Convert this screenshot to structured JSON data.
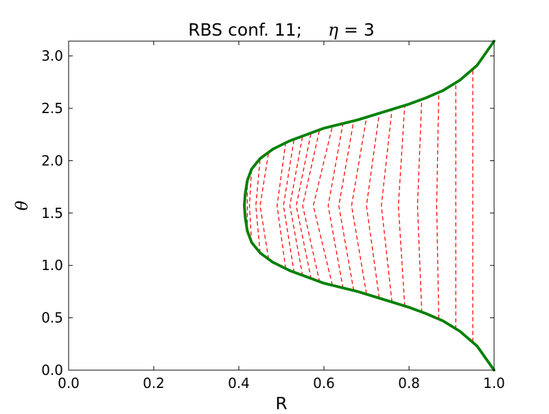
{
  "chart_data": {
    "type": "line",
    "title": {
      "prefix": "RBS conf. 11;",
      "param_symbol": "η",
      "param_suffix": " = 3"
    },
    "xlabel": "R",
    "ylabel": "θ",
    "xlim": [
      0.0,
      1.0
    ],
    "ylim": [
      0.0,
      3.14159
    ],
    "xticks": [
      "0.0",
      "0.2",
      "0.4",
      "0.6",
      "0.8",
      "1.0"
    ],
    "yticks": [
      "0.0",
      "0.5",
      "1.0",
      "1.5",
      "2.0",
      "2.5",
      "3.0"
    ],
    "grid": false,
    "boundary_line": {
      "color": "#008000",
      "style": "solid",
      "points": [
        [
          1.0,
          0.0
        ],
        [
          0.96,
          0.23
        ],
        [
          0.92,
          0.37
        ],
        [
          0.88,
          0.47
        ],
        [
          0.84,
          0.54
        ],
        [
          0.8,
          0.6
        ],
        [
          0.76,
          0.65
        ],
        [
          0.72,
          0.7
        ],
        [
          0.68,
          0.75
        ],
        [
          0.64,
          0.79
        ],
        [
          0.6,
          0.83
        ],
        [
          0.56,
          0.89
        ],
        [
          0.52,
          0.95
        ],
        [
          0.48,
          1.03
        ],
        [
          0.45,
          1.12
        ],
        [
          0.43,
          1.22
        ],
        [
          0.42,
          1.33
        ],
        [
          0.415,
          1.46
        ],
        [
          0.413,
          1.5708
        ],
        [
          0.415,
          1.68
        ],
        [
          0.42,
          1.81
        ],
        [
          0.43,
          1.92
        ],
        [
          0.45,
          2.02
        ],
        [
          0.48,
          2.11
        ],
        [
          0.52,
          2.19
        ],
        [
          0.56,
          2.25
        ],
        [
          0.6,
          2.31
        ],
        [
          0.64,
          2.35
        ],
        [
          0.68,
          2.39
        ],
        [
          0.72,
          2.44
        ],
        [
          0.76,
          2.49
        ],
        [
          0.8,
          2.54
        ],
        [
          0.84,
          2.6
        ],
        [
          0.88,
          2.67
        ],
        [
          0.92,
          2.77
        ],
        [
          0.96,
          2.91
        ],
        [
          1.0,
          3.14159
        ]
      ]
    },
    "dashed_curves": {
      "color": "#ff0000",
      "style": "dashed",
      "series": [
        {
          "points": [
            [
              0.42,
              1.33
            ],
            [
              0.42,
              1.57
            ],
            [
              0.42,
              1.81
            ]
          ]
        },
        {
          "points": [
            [
              0.43,
              1.22
            ],
            [
              0.425,
              1.57
            ],
            [
              0.43,
              1.92
            ]
          ]
        },
        {
          "points": [
            [
              0.45,
              1.12
            ],
            [
              0.44,
              1.57
            ],
            [
              0.45,
              2.02
            ]
          ]
        },
        {
          "points": [
            [
              0.47,
              1.06
            ],
            [
              0.45,
              1.57
            ],
            [
              0.47,
              2.08
            ]
          ]
        },
        {
          "points": [
            [
              0.51,
              0.97
            ],
            [
              0.49,
              1.57
            ],
            [
              0.51,
              2.17
            ]
          ]
        },
        {
          "points": [
            [
              0.53,
              0.93
            ],
            [
              0.505,
              1.57
            ],
            [
              0.53,
              2.21
            ]
          ]
        },
        {
          "points": [
            [
              0.55,
              0.9
            ],
            [
              0.52,
              1.57
            ],
            [
              0.55,
              2.24
            ]
          ]
        },
        {
          "points": [
            [
              0.57,
              0.87
            ],
            [
              0.535,
              1.57
            ],
            [
              0.57,
              2.27
            ]
          ]
        },
        {
          "points": [
            [
              0.59,
              0.84
            ],
            [
              0.55,
              1.57
            ],
            [
              0.59,
              2.3
            ]
          ]
        },
        {
          "points": [
            [
              0.62,
              0.81
            ],
            [
              0.575,
              1.57
            ],
            [
              0.62,
              2.33
            ]
          ]
        },
        {
          "points": [
            [
              0.645,
              0.78
            ],
            [
              0.61,
              1.57
            ],
            [
              0.645,
              2.36
            ]
          ]
        },
        {
          "points": [
            [
              0.67,
              0.76
            ],
            [
              0.635,
              1.57
            ],
            [
              0.67,
              2.38
            ]
          ]
        },
        {
          "points": [
            [
              0.7,
              0.73
            ],
            [
              0.665,
              1.57
            ],
            [
              0.7,
              2.41
            ]
          ]
        },
        {
          "points": [
            [
              0.73,
              0.69
            ],
            [
              0.7,
              1.57
            ],
            [
              0.73,
              2.45
            ]
          ]
        },
        {
          "points": [
            [
              0.76,
              0.65
            ],
            [
              0.735,
              1.57
            ],
            [
              0.76,
              2.49
            ]
          ]
        },
        {
          "points": [
            [
              0.79,
              0.61
            ],
            [
              0.775,
              1.57
            ],
            [
              0.79,
              2.53
            ]
          ]
        },
        {
          "points": [
            [
              0.83,
              0.55
            ],
            [
              0.82,
              1.57
            ],
            [
              0.83,
              2.59
            ]
          ]
        },
        {
          "points": [
            [
              0.87,
              0.49
            ],
            [
              0.865,
              1.57
            ],
            [
              0.87,
              2.65
            ]
          ]
        },
        {
          "points": [
            [
              0.91,
              0.39
            ],
            [
              0.91,
              1.57
            ],
            [
              0.91,
              2.75
            ]
          ]
        },
        {
          "points": [
            [
              0.95,
              0.27
            ],
            [
              0.95,
              1.57
            ],
            [
              0.95,
              2.87
            ]
          ]
        }
      ]
    }
  }
}
